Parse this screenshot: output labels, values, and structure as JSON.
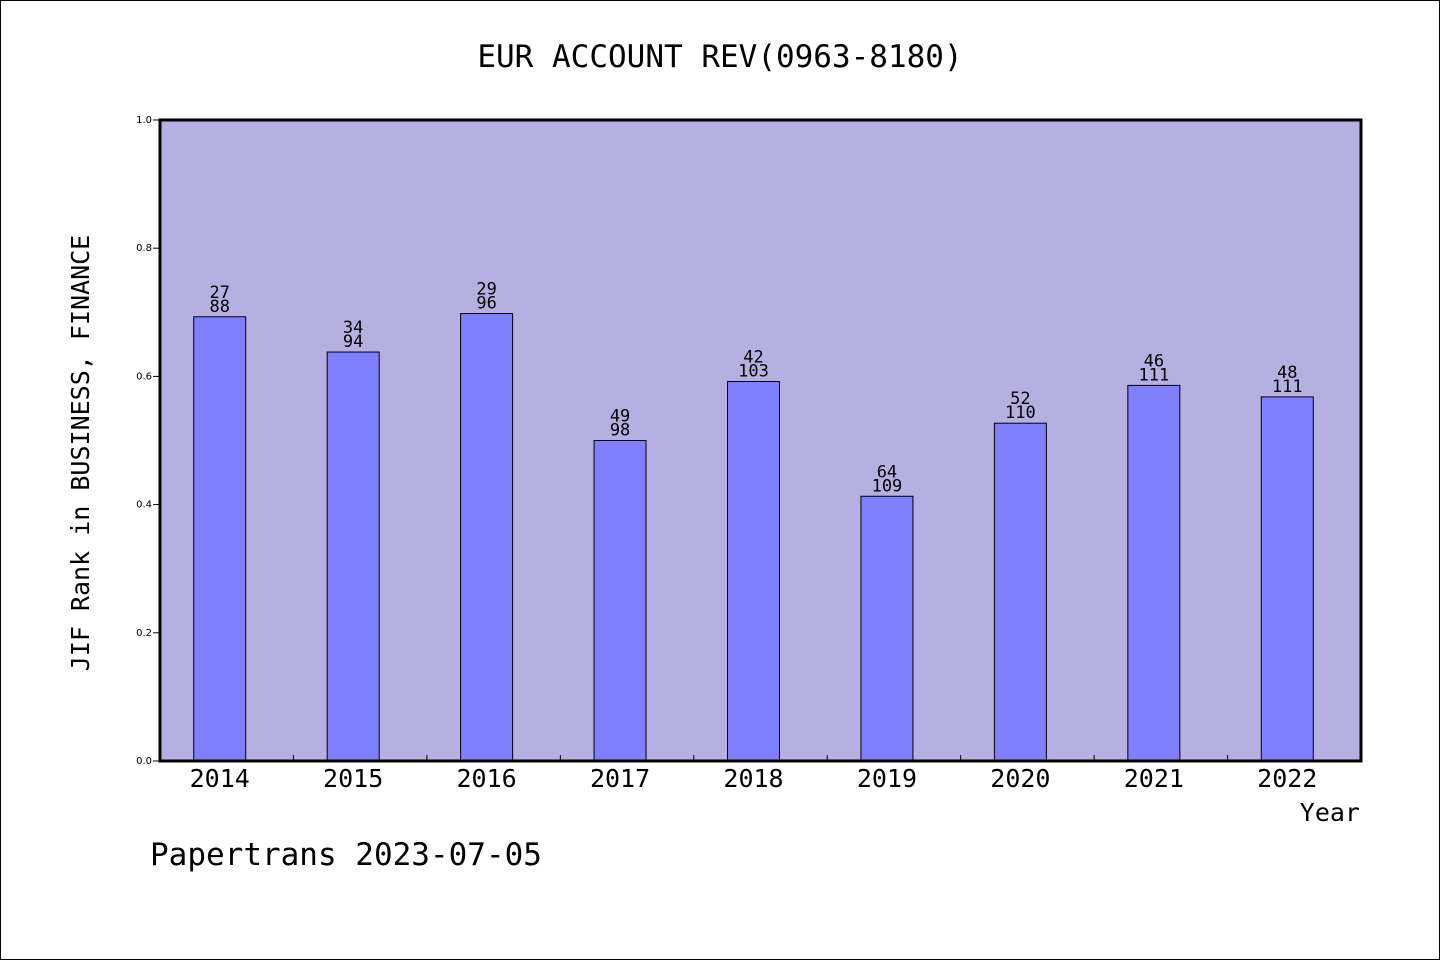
{
  "chart_data": {
    "type": "bar",
    "title": "EUR ACCOUNT REV(0963-8180)",
    "xlabel": "Year",
    "ylabel": "JIF Rank in BUSINESS, FINANCE",
    "ylim": [
      0,
      1.0
    ],
    "yticks": [
      "0.0",
      "0.2",
      "0.4",
      "0.6",
      "0.8",
      "1.0"
    ],
    "categories": [
      "2014",
      "2015",
      "2016",
      "2017",
      "2018",
      "2019",
      "2020",
      "2021",
      "2022"
    ],
    "values": [
      0.693,
      0.638,
      0.698,
      0.5,
      0.592,
      0.413,
      0.527,
      0.586,
      0.568
    ],
    "rank": [
      "27",
      "34",
      "29",
      "49",
      "42",
      "64",
      "52",
      "46",
      "48"
    ],
    "total": [
      "88",
      "94",
      "96",
      "98",
      "103",
      "109",
      "110",
      "111",
      "111"
    ],
    "grid": false,
    "legend": "none"
  },
  "footer": {
    "credit": "Papertrans 2023-07-05"
  },
  "colors": {
    "plot_bg": "#b6b0e2",
    "bar": "#8080ff",
    "axis": "#000000"
  }
}
